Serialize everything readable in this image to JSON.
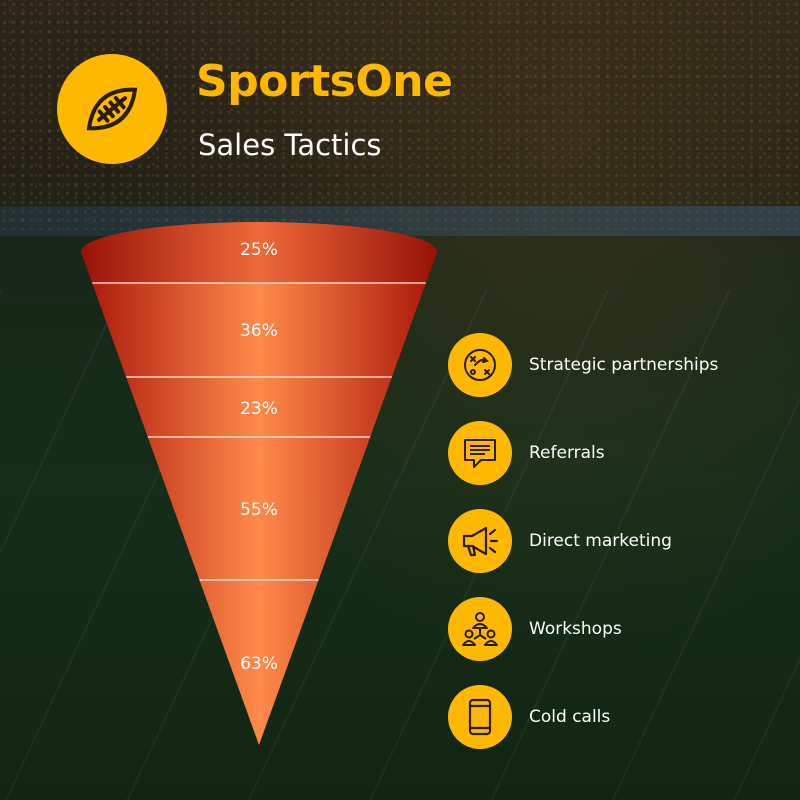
{
  "header": {
    "title": "SportsOne",
    "subtitle": "Sales Tactics",
    "logo_icon": "football-icon"
  },
  "colors": {
    "accent": "#ffb800",
    "funnel_dark": "#b8210f",
    "funnel_light": "#ff8a4a",
    "text": "#ffffff"
  },
  "chart_data": {
    "type": "funnel",
    "title": "Sales Tactics",
    "categories": [
      "Strategic partnerships",
      "Referrals",
      "Direct marketing",
      "Workshops",
      "Cold calls"
    ],
    "values": [
      25,
      36,
      23,
      55,
      63
    ],
    "value_labels": [
      "25%",
      "36%",
      "23%",
      "55%",
      "63%"
    ],
    "legend_placement": "right"
  },
  "legend": [
    {
      "label": "Strategic partnerships",
      "icon": "strategy-icon"
    },
    {
      "label": "Referrals",
      "icon": "chat-icon"
    },
    {
      "label": "Direct marketing",
      "icon": "megaphone-icon"
    },
    {
      "label": "Workshops",
      "icon": "team-icon"
    },
    {
      "label": "Cold calls",
      "icon": "phone-icon"
    }
  ]
}
